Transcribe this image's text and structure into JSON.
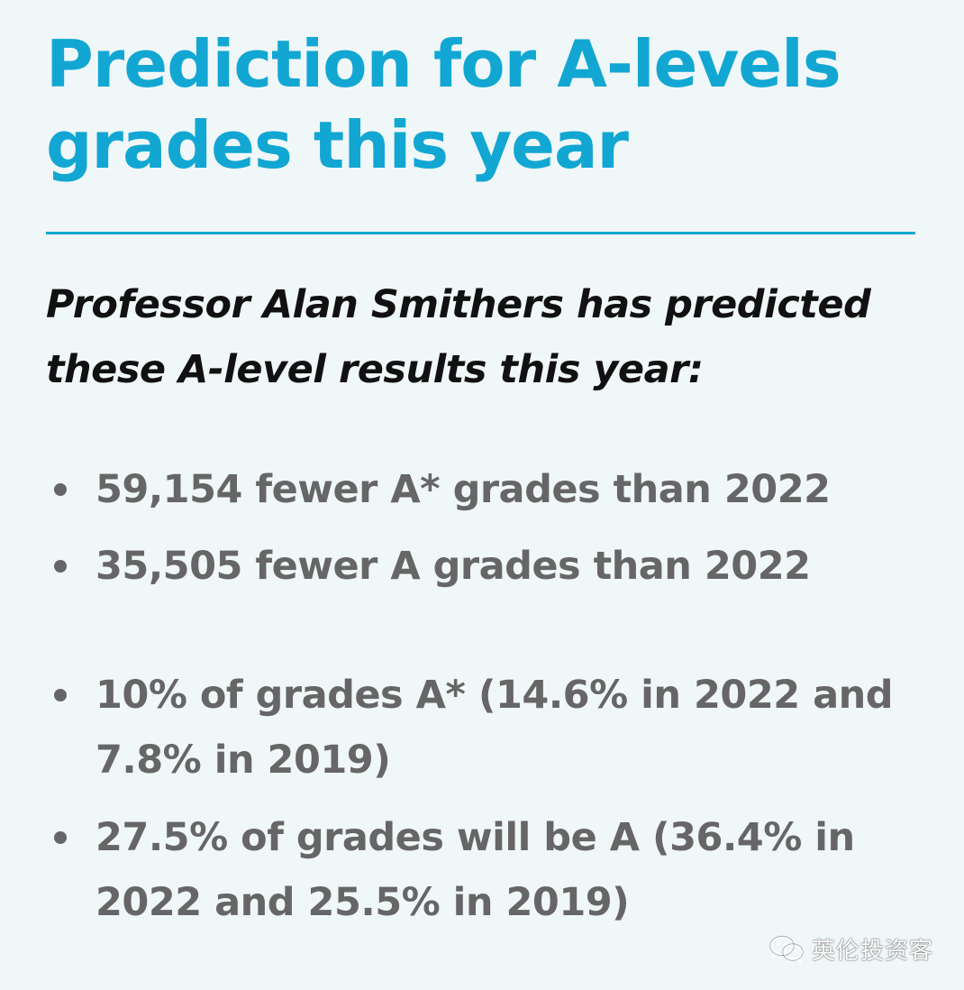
{
  "title": "Prediction for A-levels grades this year",
  "intro": "Professor Alan Smithers has predicted these A-level results this year:",
  "bullets": [
    "59,154 fewer A* grades than 2022",
    "35,505 fewer A grades than 2022",
    "10% of grades A* (14.6% in 2022 and 7.8% in 2019)",
    "27.5% of grades will be A (36.4% in 2022 and 25.5% in 2019)"
  ],
  "watermark": {
    "text": "英伦投资客",
    "icon": "wechat-icon"
  },
  "colors": {
    "background": "#f0f7f8",
    "accent": "#12a7d3",
    "intro_text": "#111111",
    "bullet_text": "#666666"
  }
}
